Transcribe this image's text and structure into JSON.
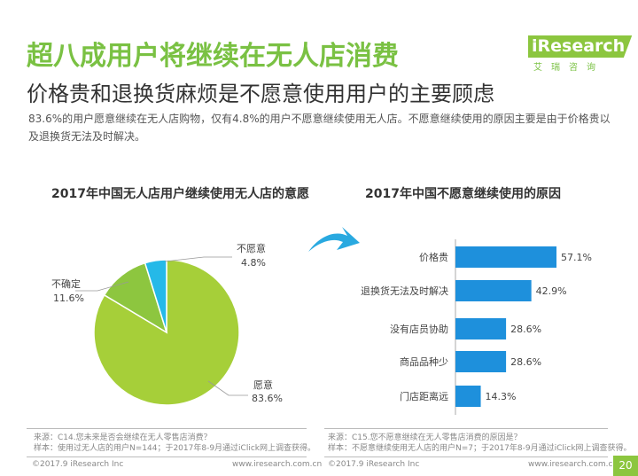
{
  "header": {
    "title": "超八成用户将继续在无人店消费",
    "subtitle": "价格贵和退换货麻烦是不愿意使用用户的主要顾虑",
    "summary": "83.6%的用户愿意继续在无人店购物，仅有4.8%的用户不愿意继续使用无人店。不愿意继续使用的原因主要是由于价格贵以及退换货无法及时解决。"
  },
  "logo": {
    "name_i": "i",
    "name_rest": "Research",
    "chinese": "艾瑞咨询"
  },
  "colors": {
    "green": "#a6cf39",
    "dark_green": "#8cc63f",
    "cyan": "#25b9e8",
    "blue": "#1e90dc",
    "arrow": "#29a9e0"
  },
  "chart_data": [
    {
      "type": "pie",
      "title": "2017年中国无人店用户继续使用无人店的意愿",
      "slices": [
        {
          "label": "愿意",
          "value": 83.6,
          "value_label": "83.6%",
          "color": "#a6cf39"
        },
        {
          "label": "不确定",
          "value": 11.6,
          "value_label": "11.6%",
          "color": "#8dc63f"
        },
        {
          "label": "不愿意",
          "value": 4.8,
          "value_label": "4.8%",
          "color": "#25b9e8"
        }
      ]
    },
    {
      "type": "bar",
      "orientation": "horizontal",
      "title": "2017年中国不愿意继续使用的原因",
      "categories": [
        "价格贵",
        "退换货无法及时解决",
        "没有店员协助",
        "商品品种少",
        "门店距离远"
      ],
      "values": [
        57.1,
        42.9,
        28.6,
        28.6,
        14.3
      ],
      "value_labels": [
        "57.1%",
        "42.9%",
        "28.6%",
        "28.6%",
        "14.3%"
      ],
      "color": "#1e90dc"
    }
  ],
  "sources": {
    "left_line1": "来源：C14.您未来是否会继续在无人零售店消费？",
    "left_line2": "样本：使用过无人店的用户N=144；于2017年8-9月通过iClick网上调查获得。",
    "right_line1": "来源：C15.您不愿意继续在无人零售店消费的原因是？",
    "right_line2": "样本：不愿意继续使用无人店的用户N=7；于2017年8-9月通过iClick网上调查获得。"
  },
  "footer": {
    "copyright": "©2017.9 iResearch Inc",
    "website": "www.iresearch.com.cn",
    "page_number": "20"
  }
}
